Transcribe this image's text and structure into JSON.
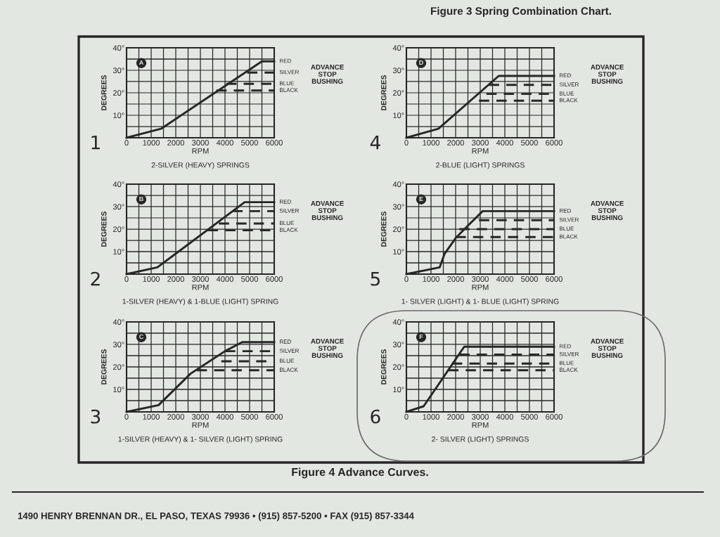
{
  "chart_data": [
    {
      "type": "line",
      "title": "A",
      "subtitle": "2-SILVER (HEAVY) SPRINGS",
      "xlabel": "RPM",
      "ylabel": "DEGREES",
      "xlim": [
        0,
        6000
      ],
      "ylim": [
        0,
        40
      ],
      "xticks": [
        0,
        {
          "value": 500,
          "label": null
        },
        1000,
        {
          "value": 1500,
          "label": null
        },
        2000,
        {
          "value": 2500,
          "label": null
        },
        3000,
        {
          "value": 3500,
          "label": null
        },
        4000,
        {
          "value": 4500,
          "label": null
        },
        5000,
        {
          "value": 5500,
          "label": null
        },
        6000
      ],
      "yticks": [
        {
          "value": 0,
          "label": null
        },
        {
          "value": 5,
          "label": null
        },
        {
          "value": 10,
          "label": "10°"
        },
        {
          "value": 15,
          "label": null
        },
        {
          "value": 20,
          "label": "20°"
        },
        {
          "value": 25,
          "label": null
        },
        {
          "value": 30,
          "label": "30°"
        },
        {
          "value": 35,
          "label": null
        },
        {
          "value": 40,
          "label": "40°"
        }
      ],
      "grid": true,
      "series": [
        {
          "name": "RED",
          "color": "#262626",
          "line_style": "solid",
          "x": [
            0,
            1400,
            5500,
            6000
          ],
          "values": [
            0,
            4,
            34,
            34
          ]
        },
        {
          "name": "SILVER",
          "color": "#262626",
          "line_style": "dashed",
          "x": [
            4900,
            6000
          ],
          "values": [
            29,
            29
          ]
        },
        {
          "name": "BLUE",
          "color": "#262626",
          "line_style": "dashed",
          "x": [
            4050,
            6000
          ],
          "values": [
            24,
            24
          ]
        },
        {
          "name": "BLACK",
          "color": "#262626",
          "line_style": "dashed",
          "x": [
            3650,
            6000
          ],
          "values": [
            21,
            21
          ]
        }
      ],
      "annotations": [
        "ADVANCE\nSTOP\nBUSHING",
        "1"
      ]
    },
    {
      "type": "line",
      "title": "B",
      "subtitle": "1-SILVER (HEAVY) & 1-BLUE (LIGHT) SPRING",
      "xlabel": "RPM",
      "ylabel": "DEGREES",
      "xlim": [
        0,
        6000
      ],
      "ylim": [
        0,
        40
      ],
      "xticks": [
        0,
        {
          "value": 500,
          "label": null
        },
        1000,
        {
          "value": 1500,
          "label": null
        },
        2000,
        {
          "value": 2500,
          "label": null
        },
        3000,
        {
          "value": 3500,
          "label": null
        },
        4000,
        {
          "value": 4500,
          "label": null
        },
        5000,
        {
          "value": 5500,
          "label": null
        },
        6000
      ],
      "yticks": [
        {
          "value": 0,
          "label": null
        },
        {
          "value": 5,
          "label": null
        },
        {
          "value": 10,
          "label": "10°"
        },
        {
          "value": 15,
          "label": null
        },
        {
          "value": 20,
          "label": "20°"
        },
        {
          "value": 25,
          "label": null
        },
        {
          "value": 30,
          "label": "30°"
        },
        {
          "value": 35,
          "label": null
        },
        {
          "value": 40,
          "label": "40°"
        }
      ],
      "grid": true,
      "series": [
        {
          "name": "RED",
          "color": "#262626",
          "line_style": "solid",
          "x": [
            0,
            1250,
            4800,
            6000
          ],
          "values": [
            0,
            3,
            32,
            32
          ]
        },
        {
          "name": "SILVER",
          "color": "#262626",
          "line_style": "dashed",
          "x": [
            4300,
            6000
          ],
          "values": [
            28,
            28
          ]
        },
        {
          "name": "BLUE",
          "color": "#262626",
          "line_style": "dashed",
          "x": [
            3750,
            6000
          ],
          "values": [
            22.5,
            22.5
          ]
        },
        {
          "name": "BLACK",
          "color": "#262626",
          "line_style": "dashed",
          "x": [
            3300,
            6000
          ],
          "values": [
            19.5,
            19.5
          ]
        }
      ],
      "annotations": [
        "ADVANCE\nSTOP\nBUSHING",
        "2"
      ]
    },
    {
      "type": "line",
      "title": "C",
      "subtitle": "1-SILVER (HEAVY) & 1- SILVER (LIGHT) SPRING",
      "xlabel": "RPM",
      "ylabel": "DEGREES",
      "xlim": [
        0,
        6000
      ],
      "ylim": [
        0,
        40
      ],
      "xticks": [
        0,
        {
          "value": 500,
          "label": null
        },
        1000,
        {
          "value": 1500,
          "label": null
        },
        2000,
        {
          "value": 2500,
          "label": null
        },
        3000,
        {
          "value": 3500,
          "label": null
        },
        4000,
        {
          "value": 4500,
          "label": null
        },
        5000,
        {
          "value": 5500,
          "label": null
        },
        6000
      ],
      "yticks": [
        {
          "value": 0,
          "label": null
        },
        {
          "value": 5,
          "label": null
        },
        {
          "value": 10,
          "label": "10°"
        },
        {
          "value": 15,
          "label": null
        },
        {
          "value": 20,
          "label": "20°"
        },
        {
          "value": 25,
          "label": null
        },
        {
          "value": 30,
          "label": "30°"
        },
        {
          "value": 35,
          "label": null
        },
        {
          "value": 40,
          "label": "40°"
        }
      ],
      "grid": true,
      "series": [
        {
          "name": "RED",
          "color": "#262626",
          "line_style": "solid",
          "x": [
            0,
            1300,
            2600,
            4000,
            4700,
            6000
          ],
          "values": [
            0,
            3,
            17,
            27,
            31,
            31
          ]
        },
        {
          "name": "SILVER",
          "color": "#262626",
          "line_style": "dashed",
          "x": [
            4000,
            6000
          ],
          "values": [
            27,
            27
          ]
        },
        {
          "name": "BLUE",
          "color": "#262626",
          "line_style": "dashed",
          "x": [
            3850,
            6000
          ],
          "values": [
            22.5,
            22.5
          ]
        },
        {
          "name": "BLACK",
          "color": "#262626",
          "line_style": "dashed",
          "x": [
            2850,
            6000
          ],
          "values": [
            18.5,
            18.5
          ]
        }
      ],
      "annotations": [
        "ADVANCE\nSTOP\nBUSHING",
        "3"
      ]
    },
    {
      "type": "line",
      "title": "D",
      "subtitle": "2-BLUE (LIGHT) SPRINGS",
      "xlabel": "RPM",
      "ylabel": "DEGREES",
      "xlim": [
        0,
        6000
      ],
      "ylim": [
        0,
        40
      ],
      "xticks": [
        0,
        {
          "value": 500,
          "label": null
        },
        1000,
        {
          "value": 1500,
          "label": null
        },
        2000,
        {
          "value": 2500,
          "label": null
        },
        3000,
        {
          "value": 3500,
          "label": null
        },
        4000,
        {
          "value": 4500,
          "label": null
        },
        5000,
        {
          "value": 5500,
          "label": null
        },
        6000
      ],
      "yticks": [
        {
          "value": 0,
          "label": null
        },
        {
          "value": 5,
          "label": null
        },
        {
          "value": 10,
          "label": "10°"
        },
        {
          "value": 15,
          "label": null
        },
        {
          "value": 20,
          "label": "20°"
        },
        {
          "value": 25,
          "label": null
        },
        {
          "value": 30,
          "label": "30°"
        },
        {
          "value": 35,
          "label": null
        },
        {
          "value": 40,
          "label": "40°"
        }
      ],
      "grid": true,
      "series": [
        {
          "name": "RED",
          "color": "#262626",
          "line_style": "solid",
          "x": [
            0,
            1300,
            3750,
            6000
          ],
          "values": [
            0,
            4,
            27.5,
            27.5
          ]
        },
        {
          "name": "SILVER",
          "color": "#262626",
          "line_style": "dashed",
          "x": [
            3350,
            6000
          ],
          "values": [
            23.5,
            23.5
          ]
        },
        {
          "name": "BLUE",
          "color": "#262626",
          "line_style": "dashed",
          "x": [
            3250,
            6000
          ],
          "values": [
            19.5,
            19.5
          ]
        },
        {
          "name": "BLACK",
          "color": "#262626",
          "line_style": "dashed",
          "x": [
            2950,
            6000
          ],
          "values": [
            16.5,
            16.5
          ]
        }
      ],
      "annotations": [
        "ADVANCE\nSTOP\nBUSHING",
        "4"
      ]
    },
    {
      "type": "line",
      "title": "E",
      "subtitle": "1- SILVER (LIGHT) & 1- BLUE (LIGHT) SPRING",
      "xlabel": "RPM",
      "ylabel": "DEGREES",
      "xlim": [
        0,
        6000
      ],
      "ylim": [
        0,
        40
      ],
      "xticks": [
        0,
        {
          "value": 500,
          "label": null
        },
        1000,
        {
          "value": 1500,
          "label": null
        },
        2000,
        {
          "value": 2500,
          "label": null
        },
        3000,
        {
          "value": 3500,
          "label": null
        },
        4000,
        {
          "value": 4500,
          "label": null
        },
        5000,
        {
          "value": 5500,
          "label": null
        },
        6000
      ],
      "yticks": [
        {
          "value": 0,
          "label": null
        },
        {
          "value": 5,
          "label": null
        },
        {
          "value": 10,
          "label": "10°"
        },
        {
          "value": 15,
          "label": null
        },
        {
          "value": 20,
          "label": "20°"
        },
        {
          "value": 25,
          "label": null
        },
        {
          "value": 30,
          "label": "30°"
        },
        {
          "value": 35,
          "label": null
        },
        {
          "value": 40,
          "label": "40°"
        }
      ],
      "grid": true,
      "series": [
        {
          "name": "RED",
          "color": "#262626",
          "line_style": "solid",
          "x": [
            0,
            1350,
            1550,
            2000,
            2450,
            3100,
            6000
          ],
          "values": [
            0,
            3,
            9,
            16,
            21,
            28,
            28
          ]
        },
        {
          "name": "SILVER",
          "color": "#262626",
          "line_style": "dashed",
          "x": [
            2950,
            6000
          ],
          "values": [
            24,
            24
          ]
        },
        {
          "name": "BLUE",
          "color": "#262626",
          "line_style": "dashed",
          "x": [
            2150,
            6000
          ],
          "values": [
            20,
            20
          ]
        },
        {
          "name": "BLACK",
          "color": "#262626",
          "line_style": "dashed",
          "x": [
            2000,
            6000
          ],
          "values": [
            16.5,
            16.5
          ]
        }
      ],
      "annotations": [
        "ADVANCE\nSTOP\nBUSHING",
        "5"
      ]
    },
    {
      "type": "line",
      "title": "F",
      "subtitle": "2- SILVER (LIGHT) SPRINGS",
      "xlabel": "RPM",
      "ylabel": "DEGREES",
      "xlim": [
        0,
        6000
      ],
      "ylim": [
        0,
        40
      ],
      "xticks": [
        0,
        {
          "value": 500,
          "label": null
        },
        1000,
        {
          "value": 1500,
          "label": null
        },
        2000,
        {
          "value": 2500,
          "label": null
        },
        3000,
        {
          "value": 3500,
          "label": null
        },
        4000,
        {
          "value": 4500,
          "label": null
        },
        5000,
        {
          "value": 5500,
          "label": null
        },
        6000
      ],
      "yticks": [
        {
          "value": 0,
          "label": null
        },
        {
          "value": 5,
          "label": null
        },
        {
          "value": 10,
          "label": "10°"
        },
        {
          "value": 15,
          "label": null
        },
        {
          "value": 20,
          "label": "20°"
        },
        {
          "value": 25,
          "label": null
        },
        {
          "value": 30,
          "label": "30°"
        },
        {
          "value": 35,
          "label": null
        },
        {
          "value": 40,
          "label": "40°"
        }
      ],
      "grid": true,
      "series": [
        {
          "name": "RED",
          "color": "#262626",
          "line_style": "solid",
          "x": [
            0,
            700,
            2350,
            6000
          ],
          "values": [
            0,
            2.5,
            29,
            29
          ]
        },
        {
          "name": "SILVER",
          "color": "#262626",
          "line_style": "dashed",
          "x": [
            2150,
            6000
          ],
          "values": [
            25.5,
            25.5
          ]
        },
        {
          "name": "BLUE",
          "color": "#262626",
          "line_style": "dashed",
          "x": [
            1850,
            6000
          ],
          "values": [
            21.5,
            21.5
          ]
        },
        {
          "name": "BLACK",
          "color": "#262626",
          "line_style": "dashed",
          "x": [
            1700,
            6000
          ],
          "values": [
            18.5,
            18.5
          ]
        }
      ],
      "annotations": [
        "ADVANCE\nSTOP\nBUSHING",
        "6"
      ]
    },
    {
      "type": "other",
      "annotations": [
        "Figure 3 Spring Combination Chart.",
        "Figure 4 Advance Curves.",
        "1490 HENRY BRENNAN DR., EL PASO, TEXAS 79936 • (915) 857-5200 • FAX (915) 857-3344"
      ]
    }
  ]
}
